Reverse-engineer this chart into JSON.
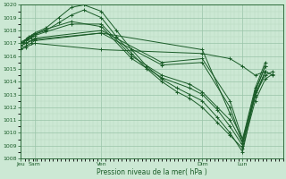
{
  "xlabel": "Pression niveau de la mer( hPa )",
  "bg_color": "#cce8d4",
  "grid_color_major": "#99c4a8",
  "grid_color_minor": "#b8d8c0",
  "line_color": "#1a5c28",
  "ylim": [
    1008,
    1020
  ],
  "yticks": [
    1008,
    1009,
    1010,
    1011,
    1012,
    1013,
    1014,
    1015,
    1016,
    1017,
    1018,
    1019,
    1020
  ],
  "xlim": [
    0.0,
    1.04
  ],
  "xtick_pos": [
    0.0,
    0.055,
    0.32,
    0.72,
    0.88
  ],
  "xtick_labels": [
    "Jeu",
    "Sam",
    "Ven",
    "Dim",
    "Lun"
  ],
  "series": [
    {
      "x": [
        0.0,
        0.01,
        0.02,
        0.03,
        0.04,
        0.055,
        0.1,
        0.15,
        0.2,
        0.25,
        0.32,
        0.38,
        0.44,
        0.5,
        0.56,
        0.62,
        0.67,
        0.72,
        0.78,
        0.83,
        0.88,
        0.93,
        0.97,
        1.0
      ],
      "y": [
        1017.0,
        1017.1,
        1017.3,
        1017.5,
        1017.6,
        1017.8,
        1018.2,
        1019.0,
        1019.8,
        1020.0,
        1019.5,
        1018.0,
        1016.5,
        1015.2,
        1014.2,
        1013.5,
        1013.0,
        1012.5,
        1011.2,
        1010.0,
        1008.5,
        1013.0,
        1014.5,
        1014.8
      ]
    },
    {
      "x": [
        0.0,
        0.01,
        0.02,
        0.03,
        0.04,
        0.055,
        0.1,
        0.15,
        0.2,
        0.25,
        0.32,
        0.38,
        0.44,
        0.5,
        0.56,
        0.62,
        0.67,
        0.72,
        0.78,
        0.83,
        0.88,
        0.93,
        0.97,
        1.0
      ],
      "y": [
        1017.0,
        1017.1,
        1017.2,
        1017.4,
        1017.5,
        1017.7,
        1018.0,
        1018.6,
        1019.2,
        1019.6,
        1019.0,
        1017.5,
        1016.2,
        1015.0,
        1014.0,
        1013.2,
        1012.7,
        1012.0,
        1010.8,
        1009.8,
        1008.8,
        1012.5,
        1014.2,
        1014.6
      ]
    },
    {
      "x": [
        0.0,
        0.02,
        0.04,
        0.055,
        0.1,
        0.2,
        0.32,
        0.44,
        0.56,
        0.67,
        0.72,
        0.78,
        0.83,
        0.88,
        0.93,
        0.97
      ],
      "y": [
        1017.0,
        1017.2,
        1017.4,
        1017.6,
        1017.9,
        1018.5,
        1018.5,
        1016.0,
        1014.5,
        1013.8,
        1013.2,
        1012.0,
        1011.0,
        1009.2,
        1013.3,
        1015.2
      ]
    },
    {
      "x": [
        0.0,
        0.02,
        0.04,
        0.055,
        0.1,
        0.2,
        0.32,
        0.44,
        0.56,
        0.67,
        0.72,
        0.78,
        0.83,
        0.88,
        0.93,
        0.97
      ],
      "y": [
        1017.1,
        1017.3,
        1017.5,
        1017.7,
        1018.1,
        1018.7,
        1018.3,
        1015.8,
        1014.3,
        1013.5,
        1013.0,
        1011.8,
        1010.5,
        1009.0,
        1013.0,
        1014.8
      ]
    },
    {
      "x": [
        0.0,
        0.02,
        0.04,
        0.055,
        0.32,
        0.56,
        0.72,
        0.83,
        0.88,
        0.93,
        0.97
      ],
      "y": [
        1016.8,
        1017.0,
        1017.2,
        1017.4,
        1018.0,
        1015.5,
        1015.8,
        1012.5,
        1009.5,
        1013.5,
        1015.5
      ]
    },
    {
      "x": [
        0.0,
        0.02,
        0.04,
        0.055,
        0.32,
        0.56,
        0.72,
        0.83,
        0.88,
        0.93,
        0.97
      ],
      "y": [
        1016.6,
        1016.8,
        1017.0,
        1017.2,
        1017.8,
        1015.3,
        1015.5,
        1012.0,
        1009.2,
        1013.2,
        1015.2
      ]
    },
    {
      "x": [
        0.0,
        0.02,
        0.055,
        0.32,
        0.72,
        0.83,
        0.88,
        0.93,
        0.97
      ],
      "y": [
        1016.8,
        1017.0,
        1017.3,
        1017.8,
        1016.5,
        1011.5,
        1009.5,
        1012.8,
        1014.8
      ]
    },
    {
      "x": [
        0.0,
        0.02,
        0.055,
        0.32,
        0.72,
        0.83,
        0.88,
        0.93,
        0.97,
        1.0
      ],
      "y": [
        1016.5,
        1016.7,
        1017.0,
        1016.5,
        1016.2,
        1015.8,
        1015.2,
        1014.5,
        1014.8,
        1014.5
      ]
    }
  ]
}
